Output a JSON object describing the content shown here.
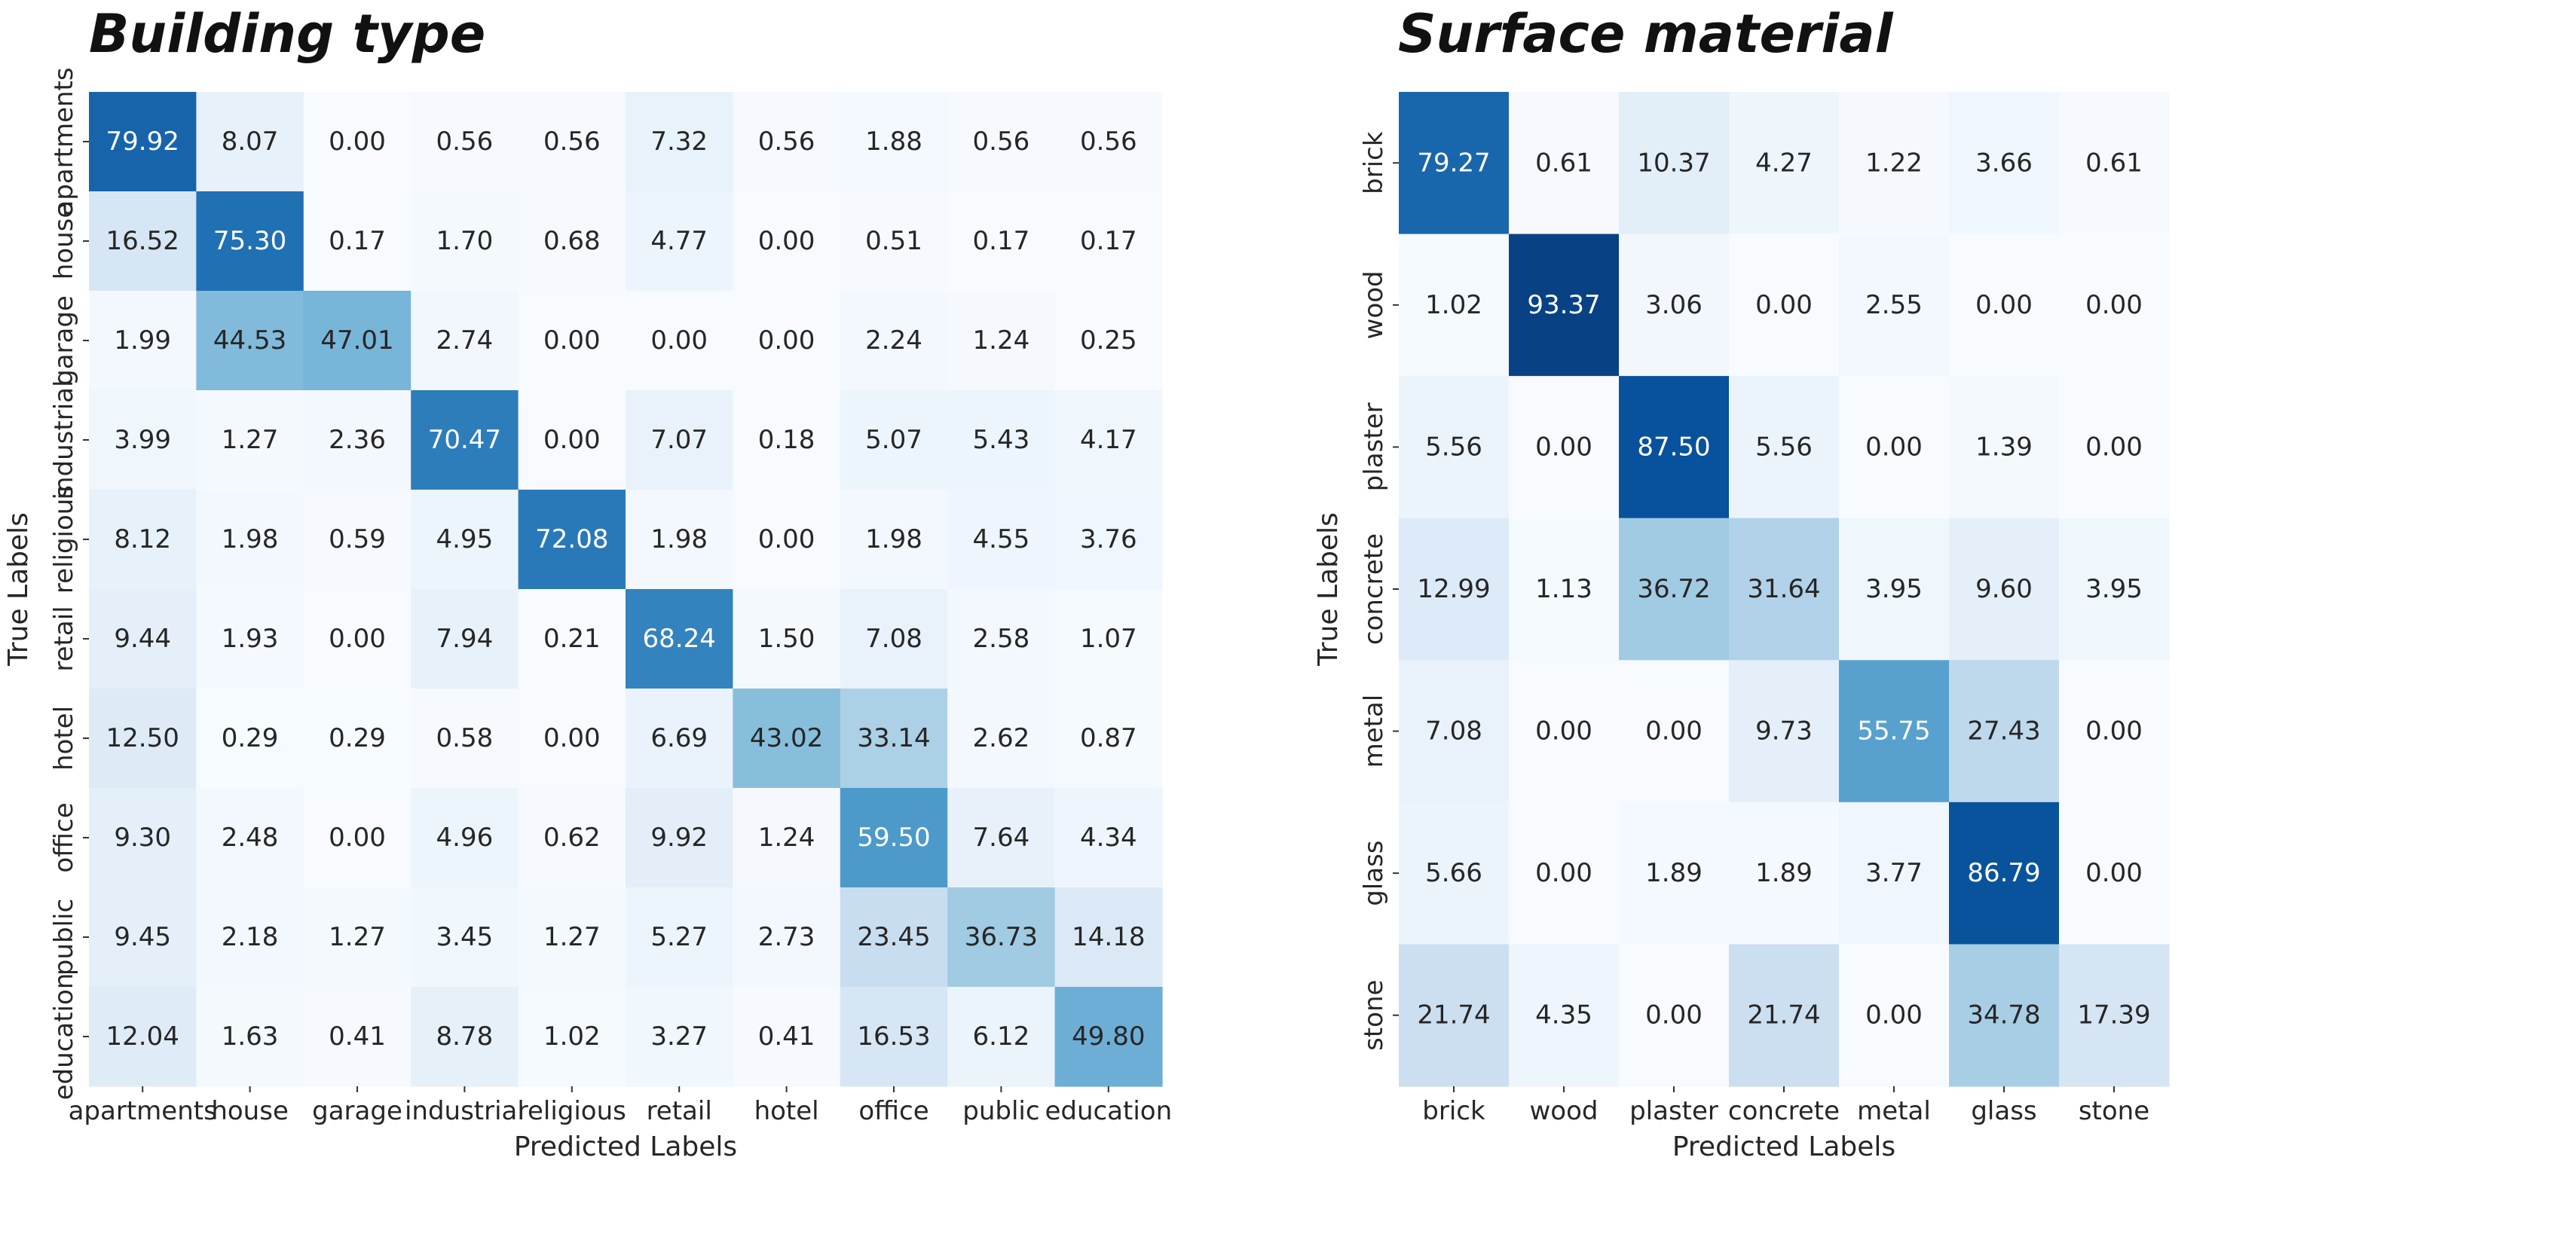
{
  "chart_data": [
    {
      "type": "heatmap",
      "title": "Building type",
      "xlabel": "Predicted Labels",
      "ylabel": "True Labels",
      "colormap": "Blues",
      "vmin": 0,
      "vmax": 100,
      "grid": false,
      "legend": "none",
      "categories": [
        "apartments",
        "house",
        "garage",
        "industrial",
        "religious",
        "retail",
        "hotel",
        "office",
        "public",
        "education"
      ],
      "values": [
        [
          79.92,
          8.07,
          0.0,
          0.56,
          0.56,
          7.32,
          0.56,
          1.88,
          0.56,
          0.56
        ],
        [
          16.52,
          75.3,
          0.17,
          1.7,
          0.68,
          4.77,
          0.0,
          0.51,
          0.17,
          0.17
        ],
        [
          1.99,
          44.53,
          47.01,
          2.74,
          0.0,
          0.0,
          0.0,
          2.24,
          1.24,
          0.25
        ],
        [
          3.99,
          1.27,
          2.36,
          70.47,
          0.0,
          7.07,
          0.18,
          5.07,
          5.43,
          4.17
        ],
        [
          8.12,
          1.98,
          0.59,
          4.95,
          72.08,
          1.98,
          0.0,
          1.98,
          4.55,
          3.76
        ],
        [
          9.44,
          1.93,
          0.0,
          7.94,
          0.21,
          68.24,
          1.5,
          7.08,
          2.58,
          1.07
        ],
        [
          12.5,
          0.29,
          0.29,
          0.58,
          0.0,
          6.69,
          43.02,
          33.14,
          2.62,
          0.87
        ],
        [
          9.3,
          2.48,
          0.0,
          4.96,
          0.62,
          9.92,
          1.24,
          59.5,
          7.64,
          4.34
        ],
        [
          9.45,
          2.18,
          1.27,
          3.45,
          1.27,
          5.27,
          2.73,
          23.45,
          36.73,
          14.18
        ],
        [
          12.04,
          1.63,
          0.41,
          8.78,
          1.02,
          3.27,
          0.41,
          16.53,
          6.12,
          49.8
        ]
      ]
    },
    {
      "type": "heatmap",
      "title": "Surface material",
      "xlabel": "Predicted Labels",
      "ylabel": "True Labels",
      "colormap": "Blues",
      "vmin": 0,
      "vmax": 100,
      "grid": false,
      "legend": "none",
      "categories": [
        "brick",
        "wood",
        "plaster",
        "concrete",
        "metal",
        "glass",
        "stone"
      ],
      "values": [
        [
          79.27,
          0.61,
          10.37,
          4.27,
          1.22,
          3.66,
          0.61
        ],
        [
          1.02,
          93.37,
          3.06,
          0.0,
          2.55,
          0.0,
          0.0
        ],
        [
          5.56,
          0.0,
          87.5,
          5.56,
          0.0,
          1.39,
          0.0
        ],
        [
          12.99,
          1.13,
          36.72,
          31.64,
          3.95,
          9.6,
          3.95
        ],
        [
          7.08,
          0.0,
          0.0,
          9.73,
          55.75,
          27.43,
          0.0
        ],
        [
          5.66,
          0.0,
          1.89,
          1.89,
          3.77,
          86.79,
          0.0
        ],
        [
          21.74,
          4.35,
          0.0,
          21.74,
          0.0,
          34.78,
          17.39
        ]
      ]
    }
  ]
}
